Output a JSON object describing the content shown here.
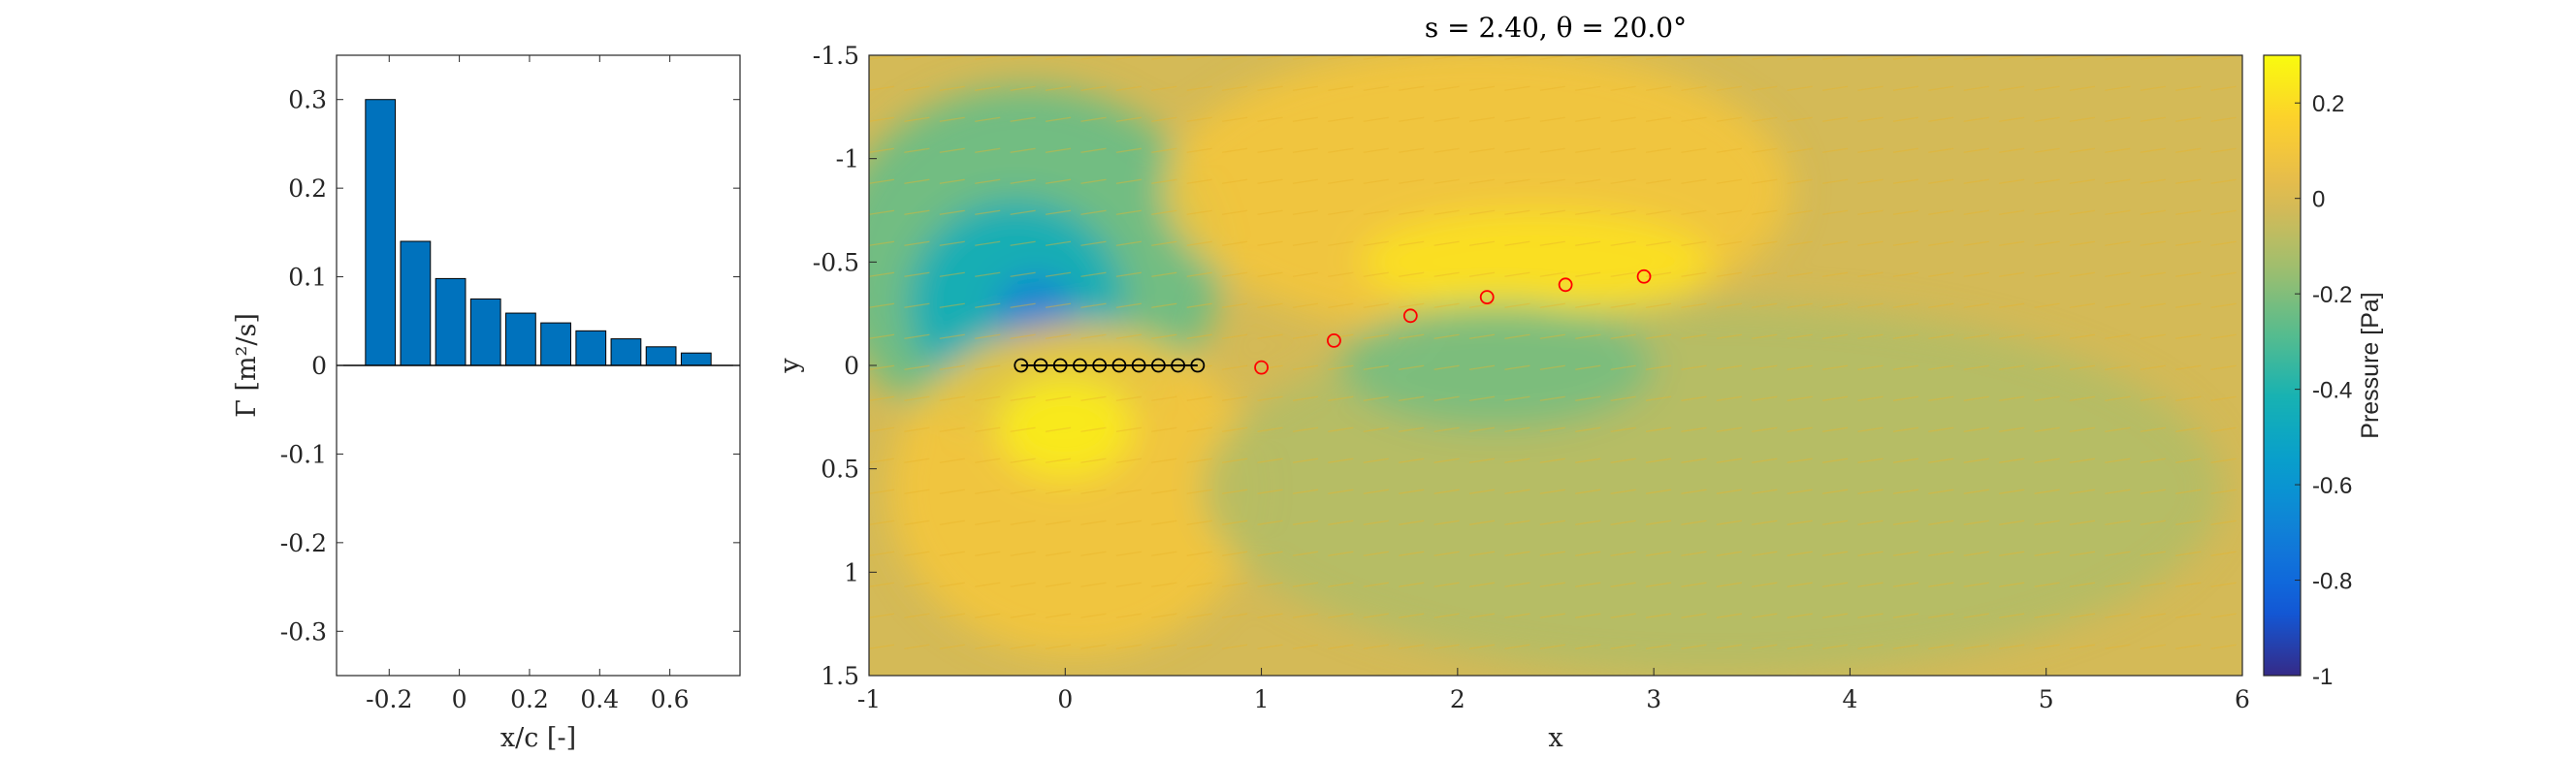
{
  "chart_data": [
    {
      "type": "bar",
      "categories": [
        -0.225,
        -0.125,
        -0.025,
        0.075,
        0.175,
        0.275,
        0.375,
        0.475,
        0.575,
        0.675
      ],
      "values": [
        0.3,
        0.14,
        0.098,
        0.075,
        0.059,
        0.048,
        0.039,
        0.03,
        0.021,
        0.014
      ],
      "xlabel": "x/c [-]",
      "ylabel": "Γ [m²/s]",
      "xlim": [
        -0.35,
        0.8
      ],
      "ylim": [
        -0.35,
        0.35
      ],
      "xticks": [
        -0.2,
        0,
        0.2,
        0.4,
        0.6
      ],
      "xtick_labels": [
        "-0.2",
        "0",
        "0.2",
        "0.4",
        "0.6"
      ],
      "yticks": [
        0.3,
        0.2,
        0.1,
        0,
        -0.1,
        -0.2,
        -0.3
      ],
      "ytick_labels": [
        "0.3",
        "0.2",
        "0.1",
        "0",
        "-0.1",
        "-0.2",
        "-0.3"
      ],
      "bar_color": "#0072BD"
    },
    {
      "type": "heatmap",
      "title": "s = 2.40, θ = 20.0°",
      "xlabel": "x",
      "ylabel": "y",
      "xlim": [
        -1,
        6
      ],
      "ylim": [
        -1.5,
        1.5
      ],
      "y_reversed": true,
      "xticks": [
        -1,
        0,
        1,
        2,
        3,
        4,
        5,
        6
      ],
      "xtick_labels": [
        "-1",
        "0",
        "1",
        "2",
        "3",
        "4",
        "5",
        "6"
      ],
      "yticks": [
        -1.5,
        -1,
        -0.5,
        0,
        0.5,
        1,
        1.5
      ],
      "ytick_labels": [
        "-1.5",
        "-1",
        "-0.5",
        "0",
        "0.5",
        "1",
        "1.5"
      ],
      "colormap": "parula",
      "background_value": -0.02,
      "field_blobs": [
        {
          "x": -0.2,
          "y": -0.5,
          "rx": 1.0,
          "ry": 0.85,
          "value": -0.25
        },
        {
          "x": -0.25,
          "y": -0.3,
          "rx": 0.55,
          "ry": 0.5,
          "value": -0.45
        },
        {
          "x": -0.15,
          "y": -0.25,
          "rx": 0.2,
          "ry": 0.18,
          "value": -0.7
        },
        {
          "x": 0.05,
          "y": 0.6,
          "rx": 0.95,
          "ry": 0.8,
          "value": 0.1
        },
        {
          "x": 0.0,
          "y": 0.3,
          "rx": 0.35,
          "ry": 0.25,
          "value": 0.25
        },
        {
          "x": 2.1,
          "y": -0.85,
          "rx": 1.6,
          "ry": 0.7,
          "value": 0.1
        },
        {
          "x": 2.4,
          "y": -0.5,
          "rx": 0.9,
          "ry": 0.25,
          "value": 0.22
        },
        {
          "x": 3.3,
          "y": 0.6,
          "rx": 2.6,
          "ry": 0.9,
          "value": -0.1
        },
        {
          "x": 2.2,
          "y": 0.0,
          "rx": 0.8,
          "ry": 0.3,
          "value": -0.22
        }
      ],
      "bound_vortices": [
        {
          "x": -0.225,
          "y": 0.0
        },
        {
          "x": -0.125,
          "y": 0.0
        },
        {
          "x": -0.025,
          "y": 0.0
        },
        {
          "x": 0.075,
          "y": 0.0
        },
        {
          "x": 0.175,
          "y": 0.0
        },
        {
          "x": 0.275,
          "y": 0.0
        },
        {
          "x": 0.375,
          "y": 0.0
        },
        {
          "x": 0.475,
          "y": 0.0
        },
        {
          "x": 0.575,
          "y": 0.0
        },
        {
          "x": 0.675,
          "y": 0.0
        }
      ],
      "wake_vortices": [
        {
          "x": 1.0,
          "y": 0.01
        },
        {
          "x": 1.37,
          "y": -0.12
        },
        {
          "x": 1.76,
          "y": -0.24
        },
        {
          "x": 2.15,
          "y": -0.33
        },
        {
          "x": 2.55,
          "y": -0.39
        },
        {
          "x": 2.95,
          "y": -0.43
        }
      ],
      "plate_line": {
        "x": [
          -0.225,
          0.675
        ],
        "y": [
          0,
          0
        ],
        "color": "#000000"
      },
      "wake_marker_color": "#FF0000",
      "colorbar": {
        "label": "Pressure [Pa]",
        "limits": [
          -1,
          0.3
        ],
        "ticks": [
          0.2,
          0,
          -0.2,
          -0.4,
          -0.6,
          -0.8,
          -1
        ],
        "tick_labels": [
          "0.2",
          "0",
          "-0.2",
          "-0.4",
          "-0.6",
          "-0.8",
          "-1"
        ]
      }
    }
  ]
}
